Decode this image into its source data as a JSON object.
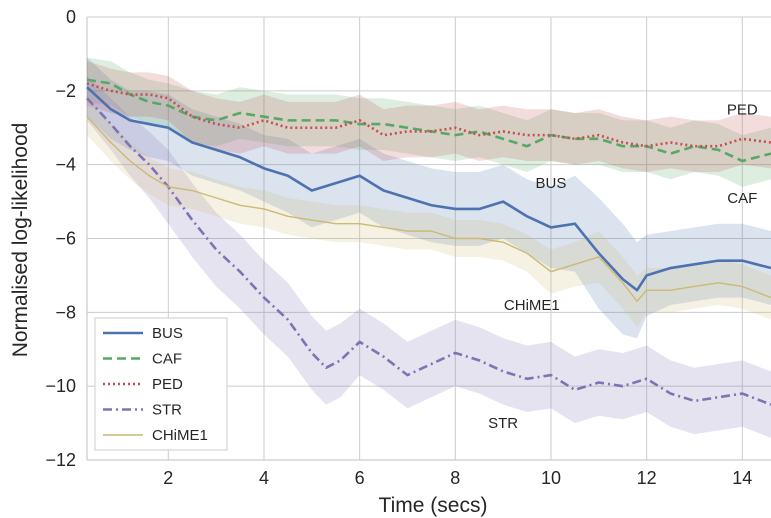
{
  "chart_data": {
    "type": "line",
    "title": "",
    "xlabel": "Time (secs)",
    "ylabel": "Normalised log-likelihood",
    "xlim": [
      0.3,
      14.6
    ],
    "ylim": [
      -12,
      0
    ],
    "xticks": [
      2,
      4,
      6,
      8,
      10,
      12,
      14
    ],
    "yticks": [
      0,
      -2,
      -4,
      -6,
      -8,
      -10,
      -12
    ],
    "grid": true,
    "legend_position": "bottom-left",
    "series": [
      {
        "name": "BUS",
        "color": "#4c72b0",
        "dash": "solid",
        "x": [
          0.3,
          0.8,
          1.2,
          1.6,
          2.0,
          2.5,
          3.0,
          3.5,
          4.0,
          4.5,
          5.0,
          5.5,
          6.0,
          6.5,
          7.0,
          7.5,
          8.0,
          8.5,
          9.0,
          9.5,
          10.0,
          10.5,
          11.0,
          11.5,
          11.8,
          12.0,
          12.5,
          13.0,
          13.5,
          14.0,
          14.6
        ],
        "values": [
          -1.9,
          -2.5,
          -2.8,
          -2.9,
          -3.0,
          -3.4,
          -3.6,
          -3.8,
          -4.1,
          -4.3,
          -4.7,
          -4.5,
          -4.3,
          -4.7,
          -4.9,
          -5.1,
          -5.2,
          -5.2,
          -5.0,
          -5.4,
          -5.7,
          -5.6,
          -6.4,
          -7.1,
          -7.4,
          -7.0,
          -6.8,
          -6.7,
          -6.6,
          -6.6,
          -6.8
        ],
        "band": [
          0.8,
          0.8,
          0.8,
          0.9,
          0.9,
          0.9,
          0.9,
          0.9,
          0.9,
          1.0,
          1.0,
          1.0,
          1.0,
          1.0,
          1.0,
          1.0,
          1.0,
          1.0,
          1.0,
          1.0,
          1.1,
          1.3,
          1.5,
          1.5,
          1.3,
          1.1,
          1.0,
          1.0,
          1.0,
          1.0,
          1.0
        ]
      },
      {
        "name": "CAF",
        "color": "#55a868",
        "dash": "dashed",
        "x": [
          0.3,
          0.8,
          1.2,
          1.6,
          2.0,
          2.5,
          3.0,
          3.5,
          4.0,
          4.5,
          5.0,
          5.5,
          6.0,
          6.5,
          7.0,
          7.5,
          8.0,
          8.5,
          9.0,
          9.5,
          10.0,
          10.5,
          11.0,
          11.5,
          12.0,
          12.5,
          13.0,
          13.5,
          14.0,
          14.6
        ],
        "values": [
          -1.7,
          -1.8,
          -2.1,
          -2.3,
          -2.4,
          -2.7,
          -2.8,
          -2.6,
          -2.7,
          -2.8,
          -2.8,
          -2.8,
          -2.9,
          -2.9,
          -3.0,
          -3.1,
          -3.2,
          -3.1,
          -3.3,
          -3.5,
          -3.2,
          -3.3,
          -3.3,
          -3.5,
          -3.5,
          -3.7,
          -3.5,
          -3.6,
          -3.9,
          -3.7
        ],
        "band": [
          0.6,
          0.6,
          0.6,
          0.6,
          0.6,
          0.7,
          0.7,
          0.7,
          0.7,
          0.7,
          0.7,
          0.7,
          0.7,
          0.7,
          0.7,
          0.7,
          0.7,
          0.7,
          0.7,
          0.7,
          0.7,
          0.7,
          0.7,
          0.7,
          0.7,
          0.7,
          0.7,
          0.7,
          0.7,
          0.7
        ]
      },
      {
        "name": "PED",
        "color": "#c44e52",
        "dash": "dotted",
        "x": [
          0.3,
          0.8,
          1.2,
          1.6,
          2.0,
          2.5,
          3.0,
          3.5,
          4.0,
          4.5,
          5.0,
          5.5,
          6.0,
          6.5,
          7.0,
          7.5,
          8.0,
          8.5,
          9.0,
          9.5,
          10.0,
          10.5,
          11.0,
          11.5,
          12.0,
          12.5,
          13.0,
          13.5,
          14.0,
          14.6
        ],
        "values": [
          -1.8,
          -2.0,
          -2.1,
          -2.1,
          -2.2,
          -2.7,
          -2.9,
          -3.0,
          -2.8,
          -3.0,
          -3.0,
          -3.0,
          -2.8,
          -3.2,
          -3.1,
          -3.1,
          -3.0,
          -3.2,
          -3.1,
          -3.2,
          -3.2,
          -3.3,
          -3.2,
          -3.4,
          -3.5,
          -3.4,
          -3.5,
          -3.5,
          -3.3,
          -3.4
        ],
        "band": [
          0.6,
          0.6,
          0.6,
          0.6,
          0.6,
          0.7,
          0.7,
          0.7,
          0.7,
          0.7,
          0.7,
          0.7,
          0.7,
          0.7,
          0.7,
          0.7,
          0.7,
          0.7,
          0.7,
          0.7,
          0.7,
          0.7,
          0.7,
          0.7,
          0.7,
          0.7,
          0.7,
          0.7,
          0.7,
          0.7
        ]
      },
      {
        "name": "STR",
        "color": "#8172b2",
        "dash": "dashdot",
        "x": [
          0.3,
          0.8,
          1.2,
          1.6,
          2.0,
          2.5,
          3.0,
          3.5,
          4.0,
          4.5,
          5.0,
          5.3,
          5.6,
          6.0,
          6.5,
          7.0,
          7.5,
          8.0,
          8.5,
          9.0,
          9.5,
          10.0,
          10.5,
          11.0,
          11.5,
          12.0,
          12.5,
          13.0,
          13.5,
          14.0,
          14.6
        ],
        "values": [
          -2.2,
          -2.9,
          -3.5,
          -4.0,
          -4.6,
          -5.5,
          -6.3,
          -6.9,
          -7.6,
          -8.2,
          -9.1,
          -9.5,
          -9.3,
          -8.8,
          -9.2,
          -9.7,
          -9.4,
          -9.1,
          -9.3,
          -9.6,
          -9.8,
          -9.7,
          -10.1,
          -9.9,
          -10.0,
          -9.8,
          -10.2,
          -10.4,
          -10.3,
          -10.2,
          -10.5
        ],
        "band": [
          0.6,
          0.7,
          0.8,
          0.9,
          1.0,
          1.0,
          1.0,
          1.0,
          1.0,
          1.0,
          1.0,
          1.0,
          1.0,
          0.9,
          0.9,
          0.9,
          0.9,
          0.9,
          0.9,
          0.9,
          0.9,
          0.9,
          0.9,
          0.9,
          0.9,
          0.9,
          0.9,
          0.9,
          0.9,
          0.9,
          0.9
        ]
      },
      {
        "name": "CHiME1",
        "color": "#ccb974",
        "dash": "solid-thin",
        "x": [
          0.3,
          0.8,
          1.2,
          1.6,
          2.0,
          2.5,
          3.0,
          3.5,
          4.0,
          4.5,
          5.0,
          5.5,
          6.0,
          6.5,
          7.0,
          7.5,
          8.0,
          8.5,
          9.0,
          9.5,
          10.0,
          10.5,
          11.0,
          11.5,
          11.8,
          12.0,
          12.5,
          13.0,
          13.5,
          14.0,
          14.6
        ],
        "values": [
          -2.7,
          -3.4,
          -3.9,
          -4.3,
          -4.6,
          -4.7,
          -4.9,
          -5.1,
          -5.2,
          -5.4,
          -5.5,
          -5.6,
          -5.6,
          -5.7,
          -5.8,
          -5.8,
          -6.0,
          -6.0,
          -6.1,
          -6.4,
          -6.9,
          -6.7,
          -6.5,
          -7.2,
          -7.7,
          -7.4,
          -7.4,
          -7.3,
          -7.2,
          -7.3,
          -7.6
        ],
        "band": [
          0.5,
          0.5,
          0.5,
          0.5,
          0.5,
          0.5,
          0.5,
          0.5,
          0.5,
          0.5,
          0.5,
          0.5,
          0.5,
          0.5,
          0.5,
          0.5,
          0.5,
          0.5,
          0.5,
          0.5,
          0.6,
          0.6,
          0.7,
          0.7,
          0.7,
          0.6,
          0.6,
          0.6,
          0.6,
          0.6,
          0.6
        ]
      }
    ],
    "annotations": [
      {
        "text": "PED",
        "x": 14.0,
        "y": -2.5
      },
      {
        "text": "BUS",
        "x": 10.0,
        "y": -4.5
      },
      {
        "text": "CAF",
        "x": 14.0,
        "y": -4.9
      },
      {
        "text": "CHiME1",
        "x": 9.6,
        "y": -7.8
      },
      {
        "text": "STR",
        "x": 9.0,
        "y": -11.0
      }
    ]
  }
}
